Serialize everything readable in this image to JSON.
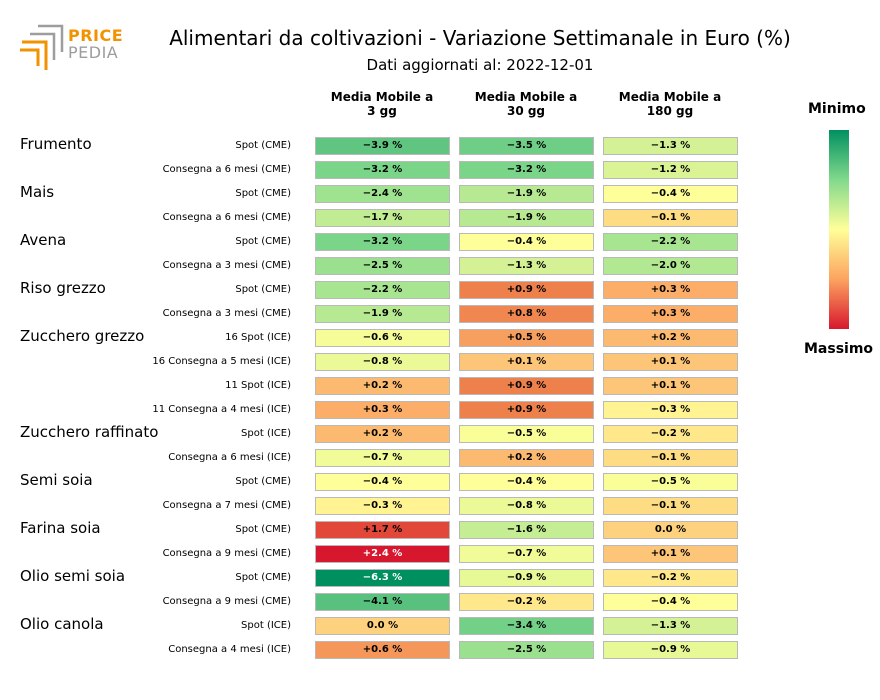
{
  "header": {
    "logo_line1": "PRICE",
    "logo_line2": "PEDIA",
    "title": "Alimentari da coltivazioni - Variazione Settimanale in Euro (%)",
    "subtitle": "Dati aggiornati al: 2022-12-01"
  },
  "legend": {
    "top": "Minimo",
    "bottom": "Massimo"
  },
  "colors": {
    "min": "#009060",
    "mid": "#ffff99",
    "max": "#d7172e",
    "logo_orange": "#f39200",
    "logo_gray": "#9d9d9d"
  },
  "chart_data": {
    "type": "table",
    "columns": [
      "Media Mobile a\n3 gg",
      "Media Mobile a\n30 gg",
      "Media Mobile a\n180 gg"
    ],
    "groups": [
      {
        "name": "Frumento",
        "rows": [
          {
            "label": "Spot (CME)",
            "values": [
              -3.9,
              -3.5,
              -1.3
            ],
            "texts": [
              "−3.9 %",
              "−3.5 %",
              "−1.3 %"
            ]
          },
          {
            "label": "Consegna a 6 mesi (CME)",
            "values": [
              -3.2,
              -3.2,
              -1.2
            ],
            "texts": [
              "−3.2 %",
              "−3.2 %",
              "−1.2 %"
            ]
          }
        ]
      },
      {
        "name": "Mais",
        "rows": [
          {
            "label": "Spot (CME)",
            "values": [
              -2.4,
              -1.9,
              -0.4
            ],
            "texts": [
              "−2.4 %",
              "−1.9 %",
              "−0.4 %"
            ]
          },
          {
            "label": "Consegna a 6 mesi (CME)",
            "values": [
              -1.7,
              -1.9,
              -0.1
            ],
            "texts": [
              "−1.7 %",
              "−1.9 %",
              "−0.1 %"
            ]
          }
        ]
      },
      {
        "name": "Avena",
        "rows": [
          {
            "label": "Spot (CME)",
            "values": [
              -3.2,
              -0.4,
              -2.2
            ],
            "texts": [
              "−3.2 %",
              "−0.4 %",
              "−2.2 %"
            ]
          },
          {
            "label": "Consegna a 3 mesi (CME)",
            "values": [
              -2.5,
              -1.3,
              -2.0
            ],
            "texts": [
              "−2.5 %",
              "−1.3 %",
              "−2.0 %"
            ]
          }
        ]
      },
      {
        "name": "Riso grezzo",
        "rows": [
          {
            "label": "Spot (CME)",
            "values": [
              -2.2,
              0.9,
              0.3
            ],
            "texts": [
              "−2.2 %",
              "+0.9 %",
              "+0.3 %"
            ]
          },
          {
            "label": "Consegna a 3 mesi (CME)",
            "values": [
              -1.9,
              0.8,
              0.3
            ],
            "texts": [
              "−1.9 %",
              "+0.8 %",
              "+0.3 %"
            ]
          }
        ]
      },
      {
        "name": "Zucchero grezzo",
        "rows": [
          {
            "label": "16 Spot (ICE)",
            "values": [
              -0.6,
              0.5,
              0.2
            ],
            "texts": [
              "−0.6 %",
              "+0.5 %",
              "+0.2 %"
            ]
          },
          {
            "label": "16 Consegna a 5 mesi (ICE)",
            "values": [
              -0.8,
              0.1,
              0.1
            ],
            "texts": [
              "−0.8 %",
              "+0.1 %",
              "+0.1 %"
            ]
          },
          {
            "label": "11 Spot (ICE)",
            "values": [
              0.2,
              0.9,
              0.1
            ],
            "texts": [
              "+0.2 %",
              "+0.9 %",
              "+0.1 %"
            ]
          },
          {
            "label": "11 Consegna a 4 mesi (ICE)",
            "values": [
              0.3,
              0.9,
              -0.3
            ],
            "texts": [
              "+0.3 %",
              "+0.9 %",
              "−0.3 %"
            ]
          }
        ]
      },
      {
        "name": "Zucchero raffinato",
        "rows": [
          {
            "label": "Spot (ICE)",
            "values": [
              0.2,
              -0.5,
              -0.2
            ],
            "texts": [
              "+0.2 %",
              "−0.5 %",
              "−0.2 %"
            ]
          },
          {
            "label": "Consegna a 6 mesi (ICE)",
            "values": [
              -0.7,
              0.2,
              -0.1
            ],
            "texts": [
              "−0.7 %",
              "+0.2 %",
              "−0.1 %"
            ]
          }
        ]
      },
      {
        "name": "Semi soia",
        "rows": [
          {
            "label": "Spot (CME)",
            "values": [
              -0.4,
              -0.4,
              -0.5
            ],
            "texts": [
              "−0.4 %",
              "−0.4 %",
              "−0.5 %"
            ]
          },
          {
            "label": "Consegna a 7 mesi (CME)",
            "values": [
              -0.3,
              -0.8,
              -0.1
            ],
            "texts": [
              "−0.3 %",
              "−0.8 %",
              "−0.1 %"
            ]
          }
        ]
      },
      {
        "name": "Farina soia",
        "rows": [
          {
            "label": "Spot (CME)",
            "values": [
              1.7,
              -1.6,
              0.0
            ],
            "texts": [
              "+1.7 %",
              "−1.6 %",
              "0.0 %"
            ]
          },
          {
            "label": "Consegna a 9 mesi (CME)",
            "values": [
              2.4,
              -0.7,
              0.1
            ],
            "texts": [
              "+2.4 %",
              "−0.7 %",
              "+0.1 %"
            ]
          }
        ]
      },
      {
        "name": "Olio semi soia",
        "rows": [
          {
            "label": "Spot (CME)",
            "values": [
              -6.3,
              -0.9,
              -0.2
            ],
            "texts": [
              "−6.3 %",
              "−0.9 %",
              "−0.2 %"
            ]
          },
          {
            "label": "Consegna a 9 mesi (CME)",
            "values": [
              -4.1,
              -0.2,
              -0.4
            ],
            "texts": [
              "−4.1 %",
              "−0.2 %",
              "−0.4 %"
            ]
          }
        ]
      },
      {
        "name": "Olio canola",
        "rows": [
          {
            "label": "Spot (ICE)",
            "values": [
              0.0,
              -3.4,
              -1.3
            ],
            "texts": [
              "0.0 %",
              "−3.4 %",
              "−1.3 %"
            ]
          },
          {
            "label": "Consegna a 4 mesi (ICE)",
            "values": [
              0.6,
              -2.5,
              -0.9
            ],
            "texts": [
              "+0.6 %",
              "−2.5 %",
              "−0.9 %"
            ]
          }
        ]
      }
    ]
  }
}
